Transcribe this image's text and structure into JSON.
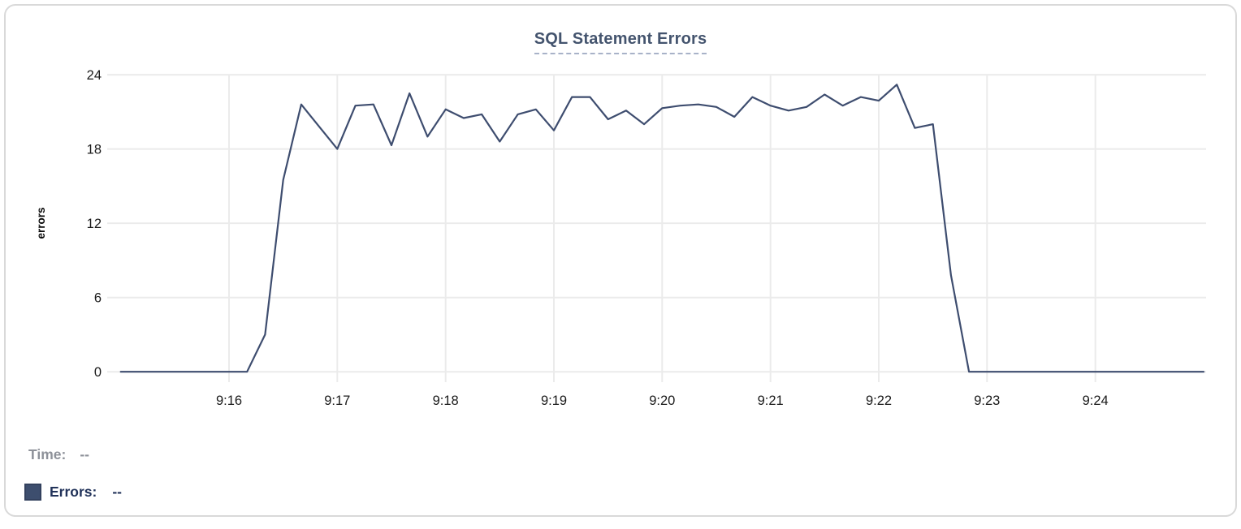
{
  "card": {
    "title": "SQL Statement Errors"
  },
  "chart_data": {
    "type": "line",
    "title": "SQL Statement Errors",
    "xlabel": "",
    "ylabel": "errors",
    "ylim": [
      0,
      24
    ],
    "y_ticks": [
      0,
      6,
      12,
      18,
      24
    ],
    "x_tick_labels": [
      "9:16",
      "9:17",
      "9:18",
      "9:19",
      "9:20",
      "9:21",
      "9:22",
      "9:23",
      "9:24"
    ],
    "x_range": [
      "9:15:00",
      "9:25:00"
    ],
    "grid": true,
    "legend_position": "bottom-left",
    "series": [
      {
        "name": "Errors",
        "color": "#3e4d6f",
        "x": [
          "9:15:00",
          "9:15:10",
          "9:15:20",
          "9:15:30",
          "9:15:40",
          "9:15:50",
          "9:16:00",
          "9:16:10",
          "9:16:20",
          "9:16:30",
          "9:16:40",
          "9:16:50",
          "9:17:00",
          "9:17:10",
          "9:17:20",
          "9:17:30",
          "9:17:40",
          "9:17:50",
          "9:18:00",
          "9:18:10",
          "9:18:20",
          "9:18:30",
          "9:18:40",
          "9:18:50",
          "9:19:00",
          "9:19:10",
          "9:19:20",
          "9:19:30",
          "9:19:40",
          "9:19:50",
          "9:20:00",
          "9:20:10",
          "9:20:20",
          "9:20:30",
          "9:20:40",
          "9:20:50",
          "9:21:00",
          "9:21:10",
          "9:21:20",
          "9:21:30",
          "9:21:40",
          "9:21:50",
          "9:22:00",
          "9:22:10",
          "9:22:20",
          "9:22:30",
          "9:22:40",
          "9:22:50",
          "9:23:00",
          "9:23:10",
          "9:23:20",
          "9:23:30",
          "9:23:40",
          "9:23:50",
          "9:24:00",
          "9:24:10",
          "9:24:20",
          "9:24:30",
          "9:24:40",
          "9:24:50",
          "9:25:00"
        ],
        "values": [
          0,
          0,
          0,
          0,
          0,
          0,
          0,
          0,
          3,
          15.5,
          21.6,
          19.8,
          18,
          21.5,
          21.6,
          18.3,
          22.5,
          19,
          21.2,
          20.5,
          20.8,
          18.6,
          20.8,
          21.2,
          19.5,
          22.2,
          22.2,
          20.4,
          21.1,
          20,
          21.3,
          21.5,
          21.6,
          21.4,
          20.6,
          22.2,
          21.5,
          21.1,
          21.4,
          22.4,
          21.5,
          22.2,
          21.9,
          23.2,
          19.7,
          20,
          7.8,
          0,
          0,
          0,
          0,
          0,
          0,
          0,
          0,
          0,
          0,
          0,
          0,
          0,
          0
        ]
      }
    ]
  },
  "readout": {
    "time_label": "Time:",
    "time_value": "--",
    "errors_label": "Errors:",
    "errors_value": "--",
    "swatch_color": "#3d4e6e"
  },
  "colors": {
    "title": "#44546e",
    "title_underline": "#a8b2c8",
    "line": "#3e4d6f",
    "grid": "#ebebeb",
    "axis_text": "#1a1a1a",
    "time_readout": "#8d9199",
    "errors_readout": "#22335a",
    "card_border": "#d9d9d9"
  }
}
